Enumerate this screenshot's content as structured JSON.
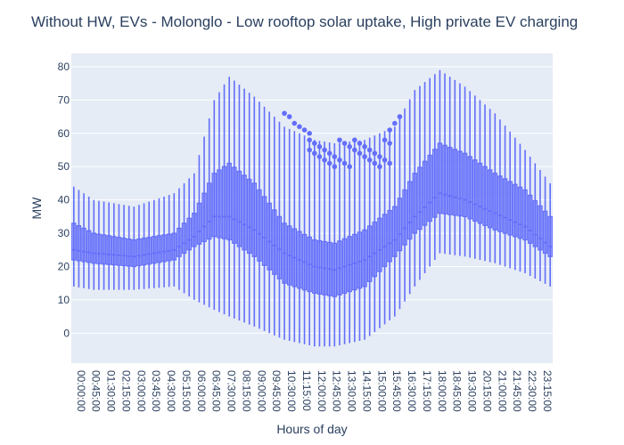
{
  "chart_data": {
    "type": "box",
    "title": "Without HW, EVs - Molonglo - Low rooftop solar uptake, High private EV charging",
    "xlabel": "Hours of day",
    "ylabel": "MW",
    "ylim": [
      -9,
      84
    ],
    "yticks": [
      0,
      10,
      20,
      30,
      40,
      50,
      60,
      70,
      80
    ],
    "grid": true,
    "legend": "none",
    "colors": {
      "box": "#636efa",
      "plot_bg": "#e5ecf6",
      "grid": "#ffffff"
    },
    "interval_minutes": 15,
    "x_tick_labels": [
      "00:00:00",
      "00:45:00",
      "01:30:00",
      "02:15:00",
      "03:00:00",
      "03:45:00",
      "04:30:00",
      "05:15:00",
      "06:00:00",
      "06:45:00",
      "07:30:00",
      "08:15:00",
      "09:00:00",
      "09:45:00",
      "10:30:00",
      "11:15:00",
      "12:00:00",
      "12:45:00",
      "13:30:00",
      "14:15:00",
      "15:00:00",
      "15:45:00",
      "16:30:00",
      "17:15:00",
      "18:00:00",
      "18:45:00",
      "19:30:00",
      "20:15:00",
      "21:00:00",
      "21:45:00",
      "22:30:00",
      "23:15:00"
    ],
    "key_points": [
      {
        "time": "00:00:00",
        "min": 14,
        "q1": 22,
        "median": 25,
        "q3": 33,
        "max": 44
      },
      {
        "time": "01:00:00",
        "min": 13,
        "q1": 21,
        "median": 24,
        "q3": 30,
        "max": 40
      },
      {
        "time": "03:00:00",
        "min": 13,
        "q1": 20,
        "median": 23,
        "q3": 28,
        "max": 38
      },
      {
        "time": "05:00:00",
        "min": 14,
        "q1": 22,
        "median": 25,
        "q3": 30,
        "max": 42
      },
      {
        "time": "06:00:00",
        "min": 10,
        "q1": 26,
        "median": 29,
        "q3": 36,
        "max": 48
      },
      {
        "time": "07:00:00",
        "min": 7,
        "q1": 29,
        "median": 35,
        "q3": 48,
        "max": 70
      },
      {
        "time": "07:45:00",
        "min": 5,
        "q1": 28,
        "median": 35,
        "q3": 51,
        "max": 77
      },
      {
        "time": "09:00:00",
        "min": 2,
        "q1": 23,
        "median": 31,
        "q3": 45,
        "max": 71
      },
      {
        "time": "10:30:00",
        "min": -2,
        "q1": 15,
        "median": 24,
        "q3": 33,
        "max": 62
      },
      {
        "time": "12:00:00",
        "min": -4,
        "q1": 12,
        "median": 20,
        "q3": 28,
        "max": 58
      },
      {
        "time": "13:00:00",
        "min": -4,
        "q1": 11,
        "median": 19,
        "q3": 27,
        "max": 57
      },
      {
        "time": "14:30:00",
        "min": -2,
        "q1": 14,
        "median": 22,
        "q3": 31,
        "max": 58
      },
      {
        "time": "16:00:00",
        "min": 5,
        "q1": 23,
        "median": 28,
        "q3": 38,
        "max": 62
      },
      {
        "time": "17:00:00",
        "min": 14,
        "q1": 30,
        "median": 35,
        "q3": 48,
        "max": 73
      },
      {
        "time": "18:15:00",
        "min": 24,
        "q1": 36,
        "median": 42,
        "q3": 57,
        "max": 79
      },
      {
        "time": "19:30:00",
        "min": 23,
        "q1": 35,
        "median": 40,
        "q3": 54,
        "max": 74
      },
      {
        "time": "21:00:00",
        "min": 21,
        "q1": 31,
        "median": 36,
        "q3": 48,
        "max": 66
      },
      {
        "time": "22:30:00",
        "min": 18,
        "q1": 28,
        "median": 32,
        "q3": 43,
        "max": 55
      },
      {
        "time": "23:45:00",
        "min": 14,
        "q1": 23,
        "median": 26,
        "q3": 35,
        "max": 45
      }
    ],
    "outlier_clusters": [
      {
        "from": "10:30:00",
        "to": "11:45:00",
        "values": [
          66,
          65,
          63,
          62,
          61,
          60
        ]
      },
      {
        "from": "11:45:00",
        "to": "15:45:00",
        "values": [
          58,
          57,
          56,
          55,
          54,
          53,
          52,
          51,
          50
        ]
      },
      {
        "from": "15:45:00",
        "to": "16:15:00",
        "values": [
          61,
          63,
          65,
          66
        ]
      }
    ]
  }
}
